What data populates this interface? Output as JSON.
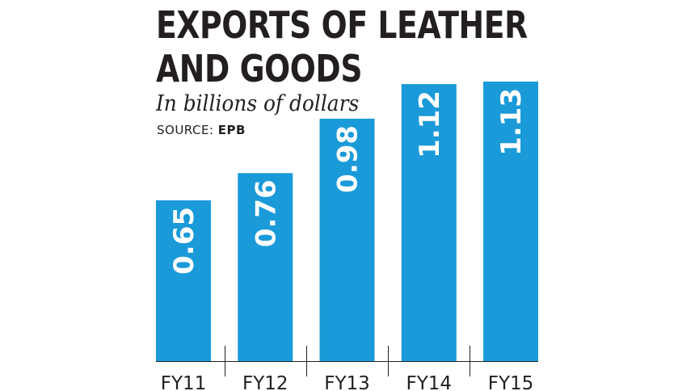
{
  "header": {
    "title_line1": "EXPORTS OF LEATHER",
    "title_line2": "AND GOODS",
    "subtitle": "In billions of dollars",
    "source_label": "SOURCE:",
    "source_value": "EPB"
  },
  "colors": {
    "bar": "#1a9ad9",
    "label": "#ffffff",
    "text": "#231f20",
    "axis": "#231f20"
  },
  "chart_data": {
    "type": "bar",
    "title": "EXPORTS OF LEATHER AND GOODS",
    "subtitle": "In billions of dollars",
    "source": "SOURCE: EPB",
    "categories": [
      "FY11",
      "FY12",
      "FY13",
      "FY14",
      "FY15"
    ],
    "values": [
      0.65,
      0.76,
      0.98,
      1.12,
      1.13
    ],
    "value_labels": [
      "0.65",
      "0.76",
      "0.98",
      "1.12",
      "1.13"
    ],
    "ylim": [
      0,
      1.13
    ],
    "grid": false,
    "legend": "none",
    "data_labels": "vertical-inside"
  }
}
